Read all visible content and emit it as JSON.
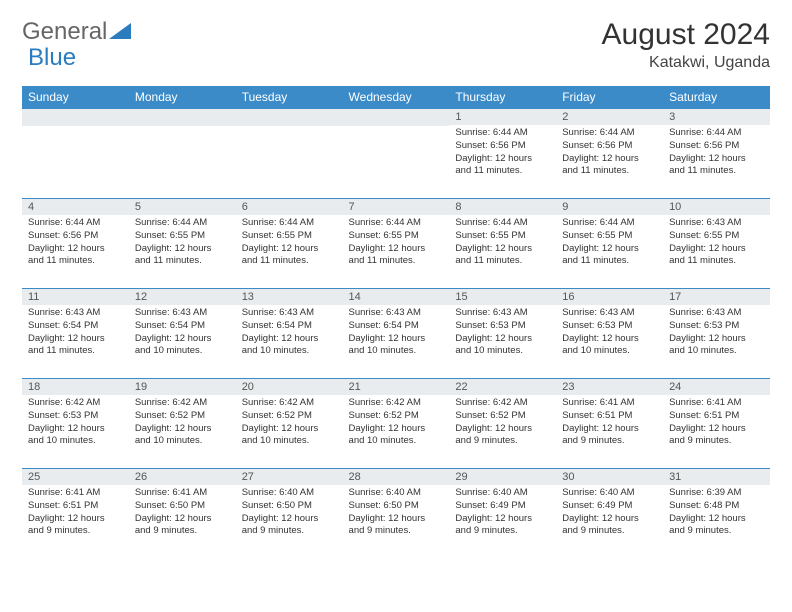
{
  "brand": {
    "part1": "General",
    "part2": "Blue"
  },
  "title": "August 2024",
  "location": "Katakwi, Uganda",
  "colors": {
    "header_bg": "#3b8bc9",
    "header_fg": "#ffffff",
    "daynum_bg": "#e9ecee",
    "row_border": "#3b8bc9",
    "text": "#333333",
    "brand_gray": "#666666",
    "brand_blue": "#2b7bbf"
  },
  "day_headers": [
    "Sunday",
    "Monday",
    "Tuesday",
    "Wednesday",
    "Thursday",
    "Friday",
    "Saturday"
  ],
  "weeks": [
    [
      {
        "n": "",
        "sr": "",
        "ss": "",
        "dl": ""
      },
      {
        "n": "",
        "sr": "",
        "ss": "",
        "dl": ""
      },
      {
        "n": "",
        "sr": "",
        "ss": "",
        "dl": ""
      },
      {
        "n": "",
        "sr": "",
        "ss": "",
        "dl": ""
      },
      {
        "n": "1",
        "sr": "6:44 AM",
        "ss": "6:56 PM",
        "dl": "12 hours and 11 minutes."
      },
      {
        "n": "2",
        "sr": "6:44 AM",
        "ss": "6:56 PM",
        "dl": "12 hours and 11 minutes."
      },
      {
        "n": "3",
        "sr": "6:44 AM",
        "ss": "6:56 PM",
        "dl": "12 hours and 11 minutes."
      }
    ],
    [
      {
        "n": "4",
        "sr": "6:44 AM",
        "ss": "6:56 PM",
        "dl": "12 hours and 11 minutes."
      },
      {
        "n": "5",
        "sr": "6:44 AM",
        "ss": "6:55 PM",
        "dl": "12 hours and 11 minutes."
      },
      {
        "n": "6",
        "sr": "6:44 AM",
        "ss": "6:55 PM",
        "dl": "12 hours and 11 minutes."
      },
      {
        "n": "7",
        "sr": "6:44 AM",
        "ss": "6:55 PM",
        "dl": "12 hours and 11 minutes."
      },
      {
        "n": "8",
        "sr": "6:44 AM",
        "ss": "6:55 PM",
        "dl": "12 hours and 11 minutes."
      },
      {
        "n": "9",
        "sr": "6:44 AM",
        "ss": "6:55 PM",
        "dl": "12 hours and 11 minutes."
      },
      {
        "n": "10",
        "sr": "6:43 AM",
        "ss": "6:55 PM",
        "dl": "12 hours and 11 minutes."
      }
    ],
    [
      {
        "n": "11",
        "sr": "6:43 AM",
        "ss": "6:54 PM",
        "dl": "12 hours and 11 minutes."
      },
      {
        "n": "12",
        "sr": "6:43 AM",
        "ss": "6:54 PM",
        "dl": "12 hours and 10 minutes."
      },
      {
        "n": "13",
        "sr": "6:43 AM",
        "ss": "6:54 PM",
        "dl": "12 hours and 10 minutes."
      },
      {
        "n": "14",
        "sr": "6:43 AM",
        "ss": "6:54 PM",
        "dl": "12 hours and 10 minutes."
      },
      {
        "n": "15",
        "sr": "6:43 AM",
        "ss": "6:53 PM",
        "dl": "12 hours and 10 minutes."
      },
      {
        "n": "16",
        "sr": "6:43 AM",
        "ss": "6:53 PM",
        "dl": "12 hours and 10 minutes."
      },
      {
        "n": "17",
        "sr": "6:43 AM",
        "ss": "6:53 PM",
        "dl": "12 hours and 10 minutes."
      }
    ],
    [
      {
        "n": "18",
        "sr": "6:42 AM",
        "ss": "6:53 PM",
        "dl": "12 hours and 10 minutes."
      },
      {
        "n": "19",
        "sr": "6:42 AM",
        "ss": "6:52 PM",
        "dl": "12 hours and 10 minutes."
      },
      {
        "n": "20",
        "sr": "6:42 AM",
        "ss": "6:52 PM",
        "dl": "12 hours and 10 minutes."
      },
      {
        "n": "21",
        "sr": "6:42 AM",
        "ss": "6:52 PM",
        "dl": "12 hours and 10 minutes."
      },
      {
        "n": "22",
        "sr": "6:42 AM",
        "ss": "6:52 PM",
        "dl": "12 hours and 9 minutes."
      },
      {
        "n": "23",
        "sr": "6:41 AM",
        "ss": "6:51 PM",
        "dl": "12 hours and 9 minutes."
      },
      {
        "n": "24",
        "sr": "6:41 AM",
        "ss": "6:51 PM",
        "dl": "12 hours and 9 minutes."
      }
    ],
    [
      {
        "n": "25",
        "sr": "6:41 AM",
        "ss": "6:51 PM",
        "dl": "12 hours and 9 minutes."
      },
      {
        "n": "26",
        "sr": "6:41 AM",
        "ss": "6:50 PM",
        "dl": "12 hours and 9 minutes."
      },
      {
        "n": "27",
        "sr": "6:40 AM",
        "ss": "6:50 PM",
        "dl": "12 hours and 9 minutes."
      },
      {
        "n": "28",
        "sr": "6:40 AM",
        "ss": "6:50 PM",
        "dl": "12 hours and 9 minutes."
      },
      {
        "n": "29",
        "sr": "6:40 AM",
        "ss": "6:49 PM",
        "dl": "12 hours and 9 minutes."
      },
      {
        "n": "30",
        "sr": "6:40 AM",
        "ss": "6:49 PM",
        "dl": "12 hours and 9 minutes."
      },
      {
        "n": "31",
        "sr": "6:39 AM",
        "ss": "6:48 PM",
        "dl": "12 hours and 9 minutes."
      }
    ]
  ],
  "labels": {
    "sunrise": "Sunrise:",
    "sunset": "Sunset:",
    "daylight": "Daylight:"
  }
}
